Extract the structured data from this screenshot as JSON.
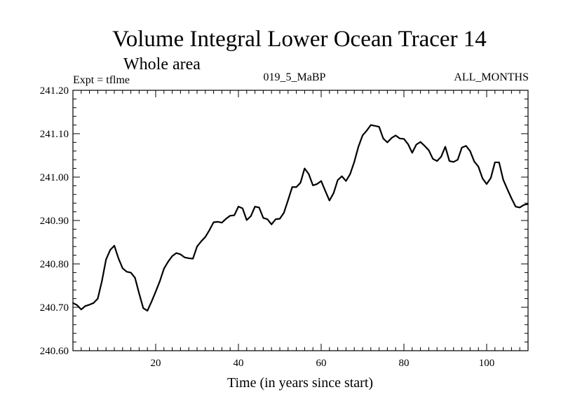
{
  "chart_data": {
    "type": "line",
    "title": "Volume Integral Lower Ocean Tracer 14",
    "subtitle": "Whole area",
    "expt_label": "Expt = tflme",
    "run_label": "019_5_MaBP",
    "period_label": "ALL_MONTHS",
    "xlabel": "Time (in years since start)",
    "ylabel": "",
    "xlim": [
      0,
      110
    ],
    "ylim": [
      240.6,
      241.2
    ],
    "x_ticks": [
      20,
      40,
      60,
      80,
      100
    ],
    "x_tick_labels": [
      "20",
      "40",
      "60",
      "80",
      "100"
    ],
    "y_ticks": [
      240.6,
      240.7,
      240.8,
      240.9,
      241.0,
      241.1,
      241.2
    ],
    "y_tick_labels": [
      "240.60",
      "240.70",
      "240.80",
      "240.90",
      "241.00",
      "241.10",
      "241.20"
    ],
    "grid": false,
    "line_color": "#000000",
    "series": [
      {
        "name": "tracer14",
        "x": [
          0,
          1,
          2,
          3,
          4,
          5,
          6,
          7,
          8,
          9,
          10,
          11,
          12,
          13,
          14,
          15,
          16,
          17,
          18,
          19,
          20,
          21,
          22,
          23,
          24,
          25,
          26,
          27,
          28,
          29,
          30,
          31,
          32,
          33,
          34,
          35,
          36,
          37,
          38,
          39,
          40,
          41,
          42,
          43,
          44,
          45,
          46,
          47,
          48,
          49,
          50,
          51,
          52,
          53,
          54,
          55,
          56,
          57,
          58,
          59,
          60,
          61,
          62,
          63,
          64,
          65,
          66,
          67,
          68,
          69,
          70,
          71,
          72,
          73,
          74,
          75,
          76,
          77,
          78,
          79,
          80,
          81,
          82,
          83,
          84,
          85,
          86,
          87,
          88,
          89,
          90,
          91,
          92,
          93,
          94,
          95,
          96,
          97,
          98,
          99,
          100,
          101,
          102,
          103,
          104,
          105,
          106,
          107,
          108,
          109,
          110
        ],
        "values": [
          240.71,
          240.705,
          240.695,
          240.703,
          240.706,
          240.71,
          240.72,
          240.76,
          240.81,
          240.832,
          240.842,
          240.813,
          240.79,
          240.782,
          240.78,
          240.768,
          240.732,
          240.698,
          240.692,
          240.713,
          240.736,
          240.76,
          240.789,
          240.805,
          240.818,
          240.825,
          240.822,
          240.815,
          240.813,
          240.812,
          240.84,
          240.852,
          240.862,
          240.878,
          240.896,
          240.897,
          240.895,
          240.904,
          240.911,
          240.912,
          240.932,
          240.928,
          240.901,
          240.91,
          240.932,
          240.93,
          240.906,
          240.903,
          240.891,
          240.903,
          240.904,
          240.918,
          240.947,
          240.977,
          240.977,
          240.987,
          241.02,
          241.007,
          240.981,
          240.984,
          240.991,
          240.968,
          240.946,
          240.963,
          240.993,
          241.002,
          240.991,
          241.007,
          241.035,
          241.07,
          241.096,
          241.107,
          241.12,
          241.118,
          241.116,
          241.089,
          241.08,
          241.09,
          241.096,
          241.089,
          241.088,
          241.076,
          241.056,
          241.075,
          241.081,
          241.072,
          241.062,
          241.042,
          241.037,
          241.047,
          241.07,
          241.037,
          241.035,
          241.04,
          241.068,
          241.072,
          241.06,
          241.036,
          241.024,
          240.997,
          240.984,
          240.998,
          241.034,
          241.034,
          240.994,
          240.972,
          240.951,
          240.932,
          240.93,
          240.936,
          240.938
        ]
      }
    ]
  }
}
